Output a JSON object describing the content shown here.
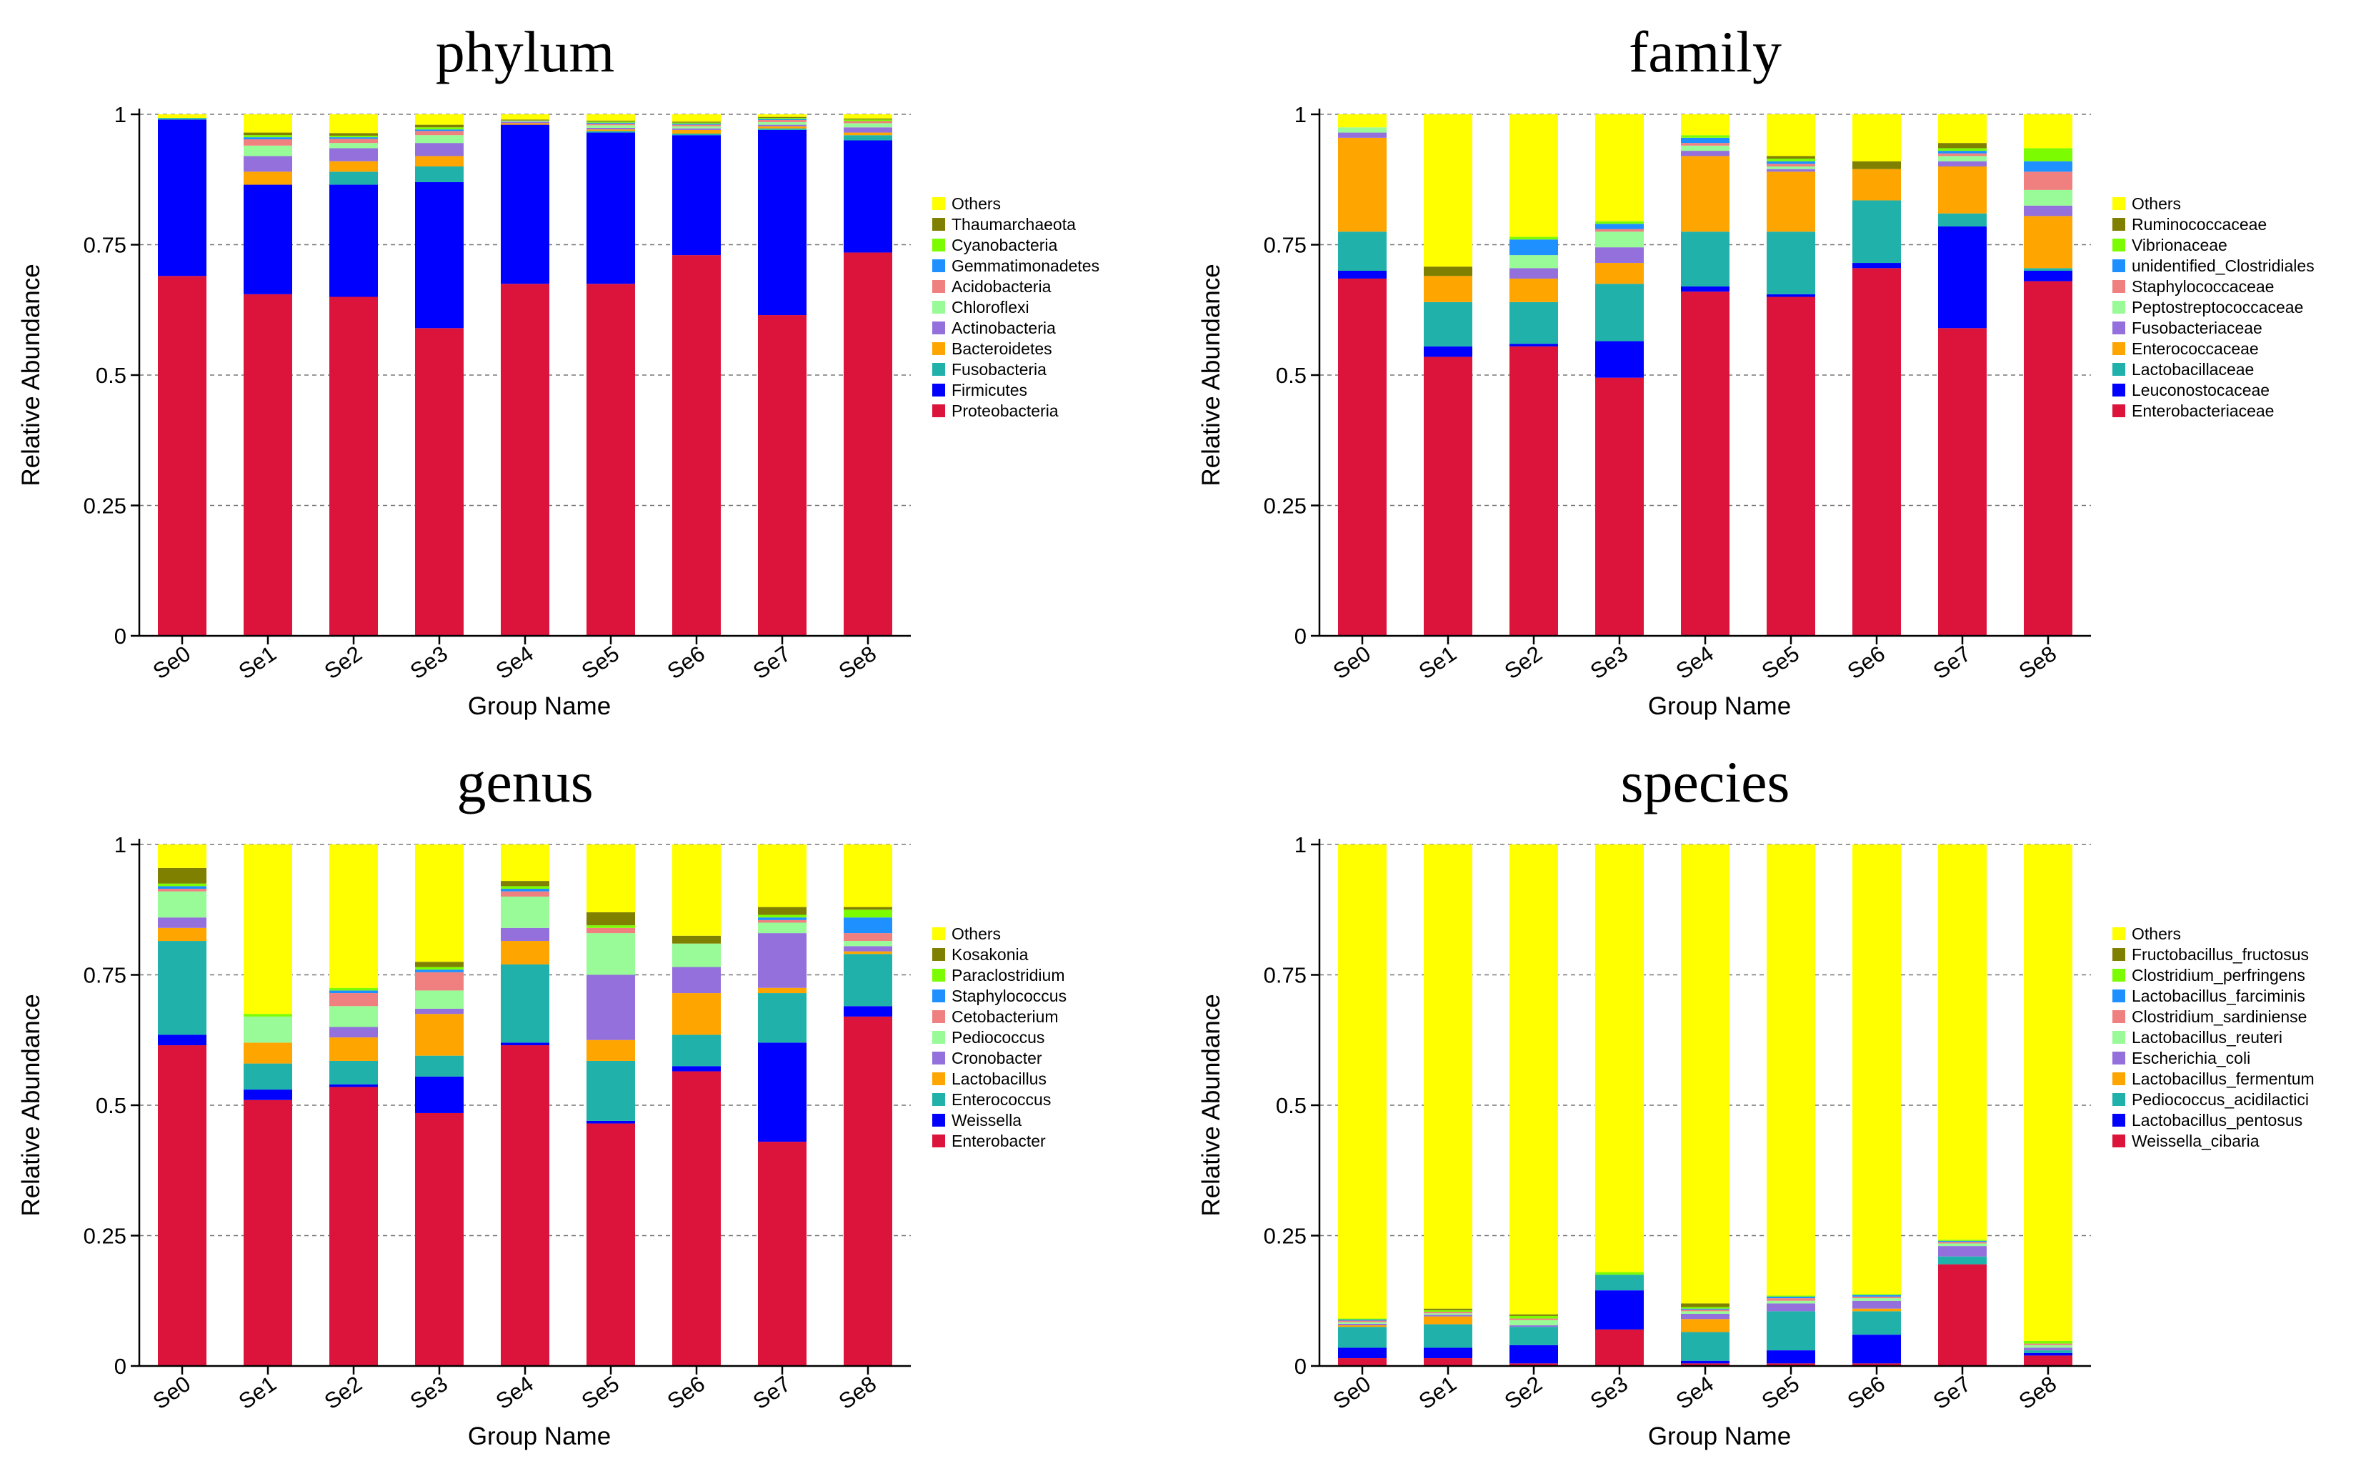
{
  "colors": {
    "Enterobacteriaceae": "#DC143C",
    "Leuconostocaceae": "#0000FF",
    "Lactobacillaceae": "#20B2AA",
    "Enterococcaceae": "#FFA500",
    "Fusobacteriaceae": "#9370DB",
    "Peptostreptococcaceae": "#98FB98",
    "Staphylococcaceae": "#F08080",
    "unidentified_Clostridiales": "#1E90FF",
    "Vibrionaceae": "#7CFC00",
    "Ruminococcaceae": "#808000",
    "Others": "#FFFF00"
  },
  "palette": [
    "#DC143C",
    "#0000FF",
    "#20B2AA",
    "#FFA500",
    "#9370DB",
    "#98FB98",
    "#F08080",
    "#1E90FF",
    "#7CFC00",
    "#808000",
    "#FFFF00"
  ],
  "chart_data": [
    {
      "type": "bar",
      "stacked": true,
      "title": "phylum",
      "xlabel": "Group Name",
      "ylabel": "Relative Abundance",
      "ylim": [
        0,
        1
      ],
      "yticks": [
        "0",
        "0.25",
        "0.5",
        "0.75",
        "1"
      ],
      "grid": true,
      "legend_position": "right",
      "categories": [
        "Se0",
        "Se1",
        "Se2",
        "Se3",
        "Se4",
        "Se5",
        "Se6",
        "Se7",
        "Se8"
      ],
      "series": [
        {
          "name": "Proteobacteria",
          "values": [
            0.69,
            0.655,
            0.65,
            0.59,
            0.675,
            0.675,
            0.73,
            0.615,
            0.735
          ]
        },
        {
          "name": "Firmicutes",
          "values": [
            0.3,
            0.21,
            0.215,
            0.28,
            0.305,
            0.29,
            0.23,
            0.355,
            0.215
          ]
        },
        {
          "name": "Fusobacteria",
          "values": [
            0.003,
            0.0,
            0.025,
            0.03,
            0.0,
            0.003,
            0.003,
            0.003,
            0.01
          ]
        },
        {
          "name": "Bacteroidetes",
          "values": [
            0.0,
            0.025,
            0.02,
            0.02,
            0.003,
            0.003,
            0.007,
            0.004,
            0.005
          ]
        },
        {
          "name": "Actinobacteria",
          "values": [
            0.0,
            0.03,
            0.025,
            0.025,
            0.003,
            0.003,
            0.003,
            0.003,
            0.01
          ]
        },
        {
          "name": "Chloroflexi",
          "values": [
            0.0,
            0.02,
            0.01,
            0.015,
            0.002,
            0.005,
            0.004,
            0.005,
            0.008
          ]
        },
        {
          "name": "Acidobacteria",
          "values": [
            0.0,
            0.012,
            0.008,
            0.008,
            0.0,
            0.003,
            0.003,
            0.004,
            0.004
          ]
        },
        {
          "name": "Gemmatimonadetes",
          "values": [
            0.0,
            0.004,
            0.003,
            0.003,
            0.0,
            0.002,
            0.002,
            0.002,
            0.0
          ]
        },
        {
          "name": "Cyanobacteria",
          "values": [
            0.0,
            0.004,
            0.003,
            0.004,
            0.0,
            0.002,
            0.002,
            0.002,
            0.003
          ]
        },
        {
          "name": "Thaumarchaeota",
          "values": [
            0.0,
            0.005,
            0.005,
            0.005,
            0.002,
            0.002,
            0.002,
            0.002,
            0.002
          ]
        },
        {
          "name": "Others",
          "values": [
            0.007,
            0.035,
            0.036,
            0.02,
            0.01,
            0.012,
            0.014,
            0.005,
            0.008
          ]
        }
      ]
    },
    {
      "type": "bar",
      "stacked": true,
      "title": "family",
      "xlabel": "Group Name",
      "ylabel": "Relative Abundance",
      "ylim": [
        0,
        1
      ],
      "yticks": [
        "0",
        "0.25",
        "0.5",
        "0.75",
        "1"
      ],
      "grid": true,
      "legend_position": "right",
      "categories": [
        "Se0",
        "Se1",
        "Se2",
        "Se3",
        "Se4",
        "Se5",
        "Se6",
        "Se7",
        "Se8"
      ],
      "series": [
        {
          "name": "Enterobacteriaceae",
          "values": [
            0.685,
            0.535,
            0.555,
            0.495,
            0.66,
            0.65,
            0.705,
            0.59,
            0.68
          ]
        },
        {
          "name": "Leuconostocaceae",
          "values": [
            0.015,
            0.02,
            0.005,
            0.07,
            0.01,
            0.005,
            0.01,
            0.195,
            0.02
          ]
        },
        {
          "name": "Lactobacillaceae",
          "values": [
            0.075,
            0.085,
            0.08,
            0.11,
            0.105,
            0.12,
            0.12,
            0.025,
            0.005
          ]
        },
        {
          "name": "Enterococcaceae",
          "values": [
            0.18,
            0.05,
            0.045,
            0.04,
            0.145,
            0.115,
            0.06,
            0.09,
            0.1
          ]
        },
        {
          "name": "Fusobacteriaceae",
          "values": [
            0.01,
            0.0,
            0.02,
            0.03,
            0.01,
            0.005,
            0.0,
            0.01,
            0.02
          ]
        },
        {
          "name": "Peptostreptococcaceae",
          "values": [
            0.01,
            0.0,
            0.025,
            0.03,
            0.01,
            0.005,
            0.0,
            0.01,
            0.03
          ]
        },
        {
          "name": "Staphylococcaceae",
          "values": [
            0.0,
            0.0,
            0.0,
            0.005,
            0.005,
            0.005,
            0.0,
            0.005,
            0.035
          ]
        },
        {
          "name": "unidentified_Clostridiales",
          "values": [
            0.0,
            0.0,
            0.03,
            0.01,
            0.01,
            0.005,
            0.0,
            0.005,
            0.02
          ]
        },
        {
          "name": "Vibrionaceae",
          "values": [
            0.0,
            0.0,
            0.005,
            0.005,
            0.005,
            0.005,
            0.0,
            0.005,
            0.025
          ]
        },
        {
          "name": "Ruminococcaceae",
          "values": [
            0.0,
            0.018,
            0.0,
            0.0,
            0.0,
            0.005,
            0.015,
            0.01,
            0.0
          ]
        },
        {
          "name": "Others",
          "values": [
            0.025,
            0.292,
            0.235,
            0.205,
            0.04,
            0.08,
            0.09,
            0.055,
            0.065
          ]
        }
      ]
    },
    {
      "type": "bar",
      "stacked": true,
      "title": "genus",
      "xlabel": "Group Name",
      "ylabel": "Relative Abundance",
      "ylim": [
        0,
        1
      ],
      "yticks": [
        "0",
        "0.25",
        "0.5",
        "0.75",
        "1"
      ],
      "grid": true,
      "legend_position": "right",
      "categories": [
        "Se0",
        "Se1",
        "Se2",
        "Se3",
        "Se4",
        "Se5",
        "Se6",
        "Se7",
        "Se8"
      ],
      "series": [
        {
          "name": "Enterobacter",
          "values": [
            0.615,
            0.51,
            0.535,
            0.485,
            0.615,
            0.465,
            0.565,
            0.43,
            0.67
          ]
        },
        {
          "name": "Weissella",
          "values": [
            0.02,
            0.02,
            0.005,
            0.07,
            0.005,
            0.005,
            0.01,
            0.19,
            0.02
          ]
        },
        {
          "name": "Enterococcus",
          "values": [
            0.18,
            0.05,
            0.045,
            0.04,
            0.15,
            0.115,
            0.06,
            0.095,
            0.1
          ]
        },
        {
          "name": "Lactobacillus",
          "values": [
            0.025,
            0.04,
            0.045,
            0.08,
            0.045,
            0.04,
            0.08,
            0.01,
            0.005
          ]
        },
        {
          "name": "Cronobacter",
          "values": [
            0.02,
            0.0,
            0.02,
            0.01,
            0.025,
            0.125,
            0.05,
            0.105,
            0.01
          ]
        },
        {
          "name": "Pediococcus",
          "values": [
            0.05,
            0.05,
            0.04,
            0.035,
            0.06,
            0.08,
            0.045,
            0.02,
            0.01
          ]
        },
        {
          "name": "Cetobacterium",
          "values": [
            0.005,
            0.0,
            0.025,
            0.035,
            0.01,
            0.01,
            0.0,
            0.005,
            0.015
          ]
        },
        {
          "name": "Staphylococcus",
          "values": [
            0.005,
            0.0,
            0.005,
            0.005,
            0.005,
            0.0,
            0.0,
            0.005,
            0.03
          ]
        },
        {
          "name": "Paraclostridium",
          "values": [
            0.005,
            0.005,
            0.005,
            0.005,
            0.005,
            0.005,
            0.0,
            0.005,
            0.015
          ]
        },
        {
          "name": "Kosakonia",
          "values": [
            0.03,
            0.0,
            0.0,
            0.01,
            0.01,
            0.025,
            0.015,
            0.015,
            0.005
          ]
        },
        {
          "name": "Others",
          "values": [
            0.045,
            0.325,
            0.275,
            0.225,
            0.07,
            0.13,
            0.175,
            0.12,
            0.12
          ]
        }
      ]
    },
    {
      "type": "bar",
      "stacked": true,
      "title": "species",
      "xlabel": "Group Name",
      "ylabel": "Relative Abundance",
      "ylim": [
        0,
        1
      ],
      "yticks": [
        "0",
        "0.25",
        "0.5",
        "0.75",
        "1"
      ],
      "grid": true,
      "legend_position": "right",
      "categories": [
        "Se0",
        "Se1",
        "Se2",
        "Se3",
        "Se4",
        "Se5",
        "Se6",
        "Se7",
        "Se8"
      ],
      "series": [
        {
          "name": "Weissella_cibaria",
          "values": [
            0.015,
            0.015,
            0.005,
            0.07,
            0.005,
            0.005,
            0.005,
            0.195,
            0.02
          ]
        },
        {
          "name": "Lactobacillus_pentosus",
          "values": [
            0.02,
            0.02,
            0.035,
            0.075,
            0.005,
            0.025,
            0.055,
            0.0,
            0.005
          ]
        },
        {
          "name": "Pediococcus_acidilactici",
          "values": [
            0.04,
            0.045,
            0.035,
            0.03,
            0.055,
            0.075,
            0.045,
            0.015,
            0.005
          ]
        },
        {
          "name": "Lactobacillus_fermentum",
          "values": [
            0.003,
            0.015,
            0.0,
            0.0,
            0.025,
            0.0,
            0.005,
            0.0,
            0.0
          ]
        },
        {
          "name": "Escherichia_coli",
          "values": [
            0.003,
            0.003,
            0.003,
            0.0,
            0.01,
            0.015,
            0.015,
            0.02,
            0.005
          ]
        },
        {
          "name": "Lactobacillus_reuteri",
          "values": [
            0.003,
            0.003,
            0.01,
            0.0,
            0.005,
            0.005,
            0.005,
            0.005,
            0.005
          ]
        },
        {
          "name": "Clostridium_sardiniense",
          "values": [
            0.003,
            0.003,
            0.003,
            0.0,
            0.003,
            0.005,
            0.003,
            0.003,
            0.003
          ]
        },
        {
          "name": "Lactobacillus_farciminis",
          "values": [
            0.002,
            0.0,
            0.0,
            0.0,
            0.002,
            0.003,
            0.003,
            0.002,
            0.0
          ]
        },
        {
          "name": "Clostridium_perfringens",
          "values": [
            0.002,
            0.003,
            0.005,
            0.005,
            0.003,
            0.002,
            0.002,
            0.002,
            0.005
          ]
        },
        {
          "name": "Fructobacillus_fructosus",
          "values": [
            0.0,
            0.003,
            0.003,
            0.0,
            0.007,
            0.0,
            0.0,
            0.0,
            0.0
          ]
        },
        {
          "name": "Others",
          "values": [
            0.909,
            0.89,
            0.901,
            0.82,
            0.88,
            0.865,
            0.862,
            0.758,
            0.952
          ]
        }
      ]
    }
  ]
}
